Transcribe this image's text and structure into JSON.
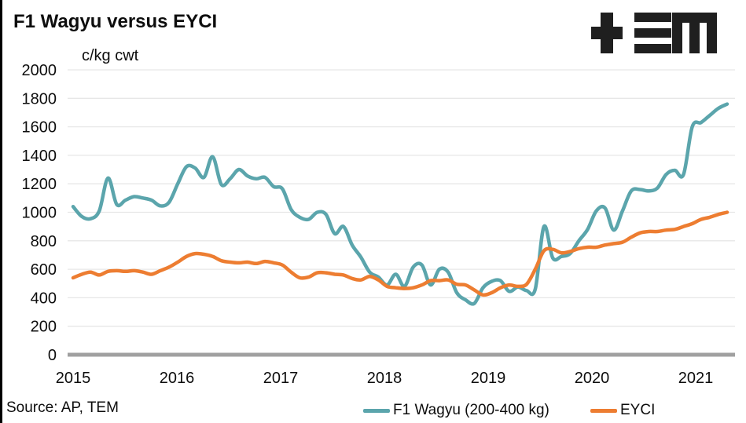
{
  "header": {
    "title": "F1 Wagyu versus EYCI",
    "unit_label": "c/kg cwt"
  },
  "footer": {
    "source": "Source: AP, TEM"
  },
  "legend": {
    "items": [
      {
        "label": "F1 Wagyu (200-400 kg)",
        "color": "#5BA5AC"
      },
      {
        "label": "EYCI",
        "color": "#ED7D31"
      }
    ]
  },
  "logo": {
    "name": "tem-logo",
    "color": "#1F1F1F"
  },
  "chart_data": {
    "type": "line",
    "title": "F1 Wagyu versus EYCI",
    "xlabel": "",
    "ylabel": "c/kg cwt",
    "ylim": [
      0,
      2000
    ],
    "yticks": [
      0,
      200,
      400,
      600,
      800,
      1000,
      1200,
      1400,
      1600,
      1800,
      2000
    ],
    "xticks": [
      "2015",
      "2016",
      "2017",
      "2018",
      "2019",
      "2020",
      "2021"
    ],
    "x_start": "2015-01",
    "x_end": "2021-04",
    "x_resolution": "monthly",
    "grid": "horizontal-only",
    "gridline_color": "#E7E7E7",
    "baseline_color": "#A0A0A0",
    "legend_position": "bottom",
    "series": [
      {
        "name": "F1 Wagyu (200-400 kg)",
        "color": "#5BA5AC",
        "values": [
          1040,
          970,
          955,
          1010,
          1240,
          1055,
          1085,
          1110,
          1100,
          1085,
          1045,
          1070,
          1200,
          1320,
          1310,
          1245,
          1390,
          1195,
          1235,
          1300,
          1255,
          1235,
          1245,
          1180,
          1165,
          1020,
          965,
          950,
          1000,
          985,
          850,
          900,
          770,
          685,
          580,
          545,
          490,
          565,
          480,
          615,
          630,
          490,
          600,
          580,
          435,
          385,
          360,
          470,
          515,
          520,
          445,
          475,
          450,
          460,
          900,
          680,
          690,
          710,
          800,
          880,
          1010,
          1030,
          875,
          1010,
          1150,
          1160,
          1150,
          1170,
          1265,
          1295,
          1265,
          1600,
          1630,
          1680,
          1730,
          1760
        ]
      },
      {
        "name": "EYCI",
        "color": "#ED7D31",
        "values": [
          540,
          565,
          580,
          560,
          585,
          590,
          585,
          590,
          580,
          565,
          590,
          615,
          650,
          690,
          710,
          705,
          690,
          660,
          650,
          645,
          650,
          640,
          655,
          645,
          630,
          580,
          540,
          545,
          575,
          575,
          565,
          560,
          535,
          525,
          550,
          525,
          480,
          470,
          465,
          470,
          490,
          520,
          520,
          525,
          495,
          490,
          455,
          420,
          435,
          470,
          490,
          480,
          495,
          600,
          730,
          740,
          715,
          725,
          745,
          755,
          755,
          770,
          780,
          790,
          825,
          855,
          865,
          865,
          875,
          880,
          900,
          920,
          950,
          965,
          985,
          1000
        ]
      }
    ]
  }
}
